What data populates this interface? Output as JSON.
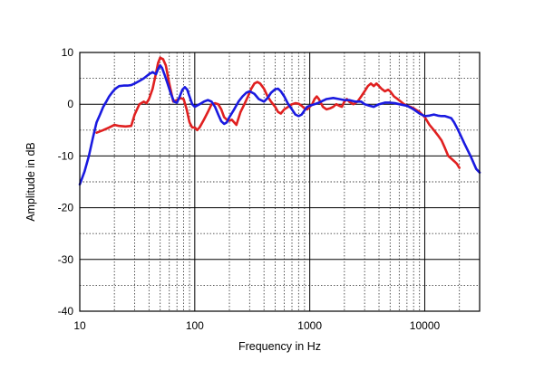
{
  "chart_data": {
    "type": "line",
    "xlabel": "Frequency in Hz",
    "ylabel": "Amplitude in dB",
    "xscale": "log",
    "xlim": [
      10,
      30000
    ],
    "ylim": [
      -40,
      10
    ],
    "x_ticks": [
      10,
      100,
      1000,
      10000
    ],
    "x_tick_labels": [
      "10",
      "100",
      "1000",
      "10000"
    ],
    "y_ticks": [
      10,
      0,
      -10,
      -20,
      -30,
      -40
    ],
    "y_tick_labels": [
      "10",
      "0",
      "-10",
      "-20",
      "-30",
      "-40"
    ],
    "grid": true,
    "series": [
      {
        "color": "#e02020",
        "points": [
          [
            14,
            -5.5
          ],
          [
            16,
            -5
          ],
          [
            18,
            -4.5
          ],
          [
            20,
            -4
          ],
          [
            22,
            -4.2
          ],
          [
            25,
            -4.3
          ],
          [
            28,
            -4.2
          ],
          [
            30,
            -2
          ],
          [
            33,
            0
          ],
          [
            36,
            0.5
          ],
          [
            38,
            0.2
          ],
          [
            40,
            1
          ],
          [
            43,
            3
          ],
          [
            46,
            6
          ],
          [
            48,
            8
          ],
          [
            50,
            9
          ],
          [
            53,
            8.7
          ],
          [
            56,
            7.5
          ],
          [
            60,
            4
          ],
          [
            65,
            0.5
          ],
          [
            70,
            0.8
          ],
          [
            75,
            1.2
          ],
          [
            80,
            1
          ],
          [
            85,
            -1
          ],
          [
            90,
            -3.5
          ],
          [
            95,
            -4.5
          ],
          [
            100,
            -4.5
          ],
          [
            105,
            -5
          ],
          [
            110,
            -4.5
          ],
          [
            120,
            -3
          ],
          [
            130,
            -1.5
          ],
          [
            140,
            0
          ],
          [
            150,
            0.2
          ],
          [
            160,
            0
          ],
          [
            170,
            -1
          ],
          [
            180,
            -2.5
          ],
          [
            190,
            -3
          ],
          [
            200,
            -3.2
          ],
          [
            210,
            -3
          ],
          [
            220,
            -3.5
          ],
          [
            230,
            -4
          ],
          [
            250,
            -1.5
          ],
          [
            270,
            0
          ],
          [
            290,
            1.5
          ],
          [
            310,
            3
          ],
          [
            330,
            4
          ],
          [
            350,
            4.3
          ],
          [
            370,
            4
          ],
          [
            400,
            3
          ],
          [
            430,
            1.5
          ],
          [
            460,
            0.5
          ],
          [
            500,
            -0.5
          ],
          [
            530,
            -1.5
          ],
          [
            560,
            -1.8
          ],
          [
            600,
            -1
          ],
          [
            650,
            -0.5
          ],
          [
            700,
            0
          ],
          [
            750,
            0.2
          ],
          [
            800,
            0.1
          ],
          [
            850,
            -0.3
          ],
          [
            900,
            -0.8
          ],
          [
            950,
            -1
          ],
          [
            1000,
            -0.5
          ],
          [
            1050,
            0
          ],
          [
            1100,
            1
          ],
          [
            1150,
            1.5
          ],
          [
            1200,
            1
          ],
          [
            1300,
            -0.5
          ],
          [
            1400,
            -1
          ],
          [
            1500,
            -0.8
          ],
          [
            1600,
            -0.5
          ],
          [
            1700,
            0
          ],
          [
            1800,
            -0.3
          ],
          [
            1900,
            -0.5
          ],
          [
            2000,
            0.5
          ],
          [
            2100,
            1
          ],
          [
            2200,
            0.5
          ],
          [
            2400,
            0
          ],
          [
            2600,
            0.5
          ],
          [
            2800,
            1.5
          ],
          [
            3000,
            2.5
          ],
          [
            3200,
            3.5
          ],
          [
            3400,
            4
          ],
          [
            3600,
            3.5
          ],
          [
            3800,
            4
          ],
          [
            4000,
            3.5
          ],
          [
            4200,
            3
          ],
          [
            4500,
            2.5
          ],
          [
            4800,
            2.8
          ],
          [
            5000,
            2.5
          ],
          [
            5400,
            1.5
          ],
          [
            5800,
            1
          ],
          [
            6200,
            0.5
          ],
          [
            6600,
            0
          ],
          [
            7000,
            -0.3
          ],
          [
            7500,
            -0.5
          ],
          [
            8000,
            -0.8
          ],
          [
            9000,
            -1.5
          ],
          [
            10000,
            -2.5
          ],
          [
            11000,
            -4
          ],
          [
            12000,
            -5
          ],
          [
            13000,
            -6
          ],
          [
            14000,
            -7
          ],
          [
            15000,
            -8.5
          ],
          [
            16000,
            -10
          ],
          [
            17000,
            -10.5
          ],
          [
            18000,
            -11
          ],
          [
            19000,
            -11.5
          ],
          [
            20000,
            -12.3
          ]
        ]
      },
      {
        "color": "#1a1ae0",
        "points": [
          [
            10,
            -15.5
          ],
          [
            11,
            -13
          ],
          [
            12,
            -10
          ],
          [
            13,
            -6.5
          ],
          [
            14,
            -3.5
          ],
          [
            15,
            -2
          ],
          [
            16,
            -0.5
          ],
          [
            17,
            0.5
          ],
          [
            18,
            1.5
          ],
          [
            19,
            2.2
          ],
          [
            20,
            2.8
          ],
          [
            21,
            3.2
          ],
          [
            22,
            3.5
          ],
          [
            24,
            3.6
          ],
          [
            26,
            3.6
          ],
          [
            28,
            3.7
          ],
          [
            30,
            4
          ],
          [
            33,
            4.5
          ],
          [
            36,
            5
          ],
          [
            40,
            5.8
          ],
          [
            43,
            6.2
          ],
          [
            46,
            5.8
          ],
          [
            48,
            6.8
          ],
          [
            50,
            7.5
          ],
          [
            52,
            7
          ],
          [
            55,
            5.5
          ],
          [
            58,
            4
          ],
          [
            62,
            2
          ],
          [
            66,
            0.5
          ],
          [
            70,
            0.3
          ],
          [
            74,
            1.5
          ],
          [
            78,
            2.8
          ],
          [
            82,
            3.3
          ],
          [
            86,
            2.8
          ],
          [
            90,
            1.5
          ],
          [
            95,
            0
          ],
          [
            100,
            -0.5
          ],
          [
            110,
            0
          ],
          [
            120,
            0.5
          ],
          [
            130,
            0.8
          ],
          [
            140,
            0.5
          ],
          [
            150,
            -0.5
          ],
          [
            160,
            -2
          ],
          [
            170,
            -3.3
          ],
          [
            180,
            -3.8
          ],
          [
            190,
            -3.5
          ],
          [
            200,
            -2.5
          ],
          [
            220,
            -1
          ],
          [
            240,
            0.5
          ],
          [
            260,
            1.5
          ],
          [
            280,
            2.2
          ],
          [
            300,
            2.5
          ],
          [
            330,
            2
          ],
          [
            360,
            1
          ],
          [
            400,
            0.5
          ],
          [
            430,
            1.2
          ],
          [
            460,
            2.2
          ],
          [
            500,
            2.9
          ],
          [
            530,
            3
          ],
          [
            560,
            2.5
          ],
          [
            600,
            1.5
          ],
          [
            650,
            0
          ],
          [
            700,
            -1
          ],
          [
            750,
            -2
          ],
          [
            800,
            -2.3
          ],
          [
            850,
            -2
          ],
          [
            900,
            -1.2
          ],
          [
            950,
            -0.5
          ],
          [
            1000,
            -0.3
          ],
          [
            1100,
            0
          ],
          [
            1200,
            0.3
          ],
          [
            1400,
            1
          ],
          [
            1600,
            1.2
          ],
          [
            1800,
            1
          ],
          [
            2000,
            0.8
          ],
          [
            2200,
            0.8
          ],
          [
            2500,
            0.5
          ],
          [
            2800,
            0.5
          ],
          [
            3000,
            0
          ],
          [
            3300,
            -0.3
          ],
          [
            3600,
            -0.5
          ],
          [
            4000,
            0
          ],
          [
            4500,
            0.3
          ],
          [
            5000,
            0.3
          ],
          [
            5500,
            0.2
          ],
          [
            6000,
            0
          ],
          [
            7000,
            -0.3
          ],
          [
            8000,
            -1
          ],
          [
            9000,
            -1.8
          ],
          [
            10000,
            -2.3
          ],
          [
            11000,
            -2.2
          ],
          [
            12000,
            -2
          ],
          [
            13000,
            -2.2
          ],
          [
            14000,
            -2.3
          ],
          [
            15000,
            -2.3
          ],
          [
            16000,
            -2.5
          ],
          [
            17000,
            -2.7
          ],
          [
            18000,
            -3.5
          ],
          [
            19000,
            -4.5
          ],
          [
            20000,
            -5.5
          ],
          [
            22000,
            -7.5
          ],
          [
            25000,
            -10
          ],
          [
            28000,
            -12.5
          ],
          [
            30000,
            -13.2
          ]
        ]
      }
    ]
  }
}
